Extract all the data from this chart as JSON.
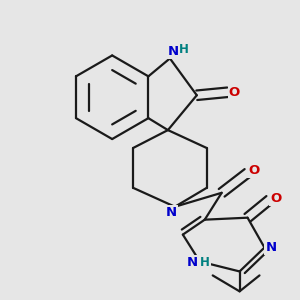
{
  "background_color": "#e6e6e6",
  "bond_color": "#1a1a1a",
  "nitrogen_color": "#0000cc",
  "oxygen_color": "#cc0000",
  "h_color": "#008080",
  "line_width": 1.6,
  "font_size_atom": 9.5,
  "font_size_h": 8.5,
  "xlim": [
    0,
    1
  ],
  "ylim": [
    0,
    1
  ]
}
